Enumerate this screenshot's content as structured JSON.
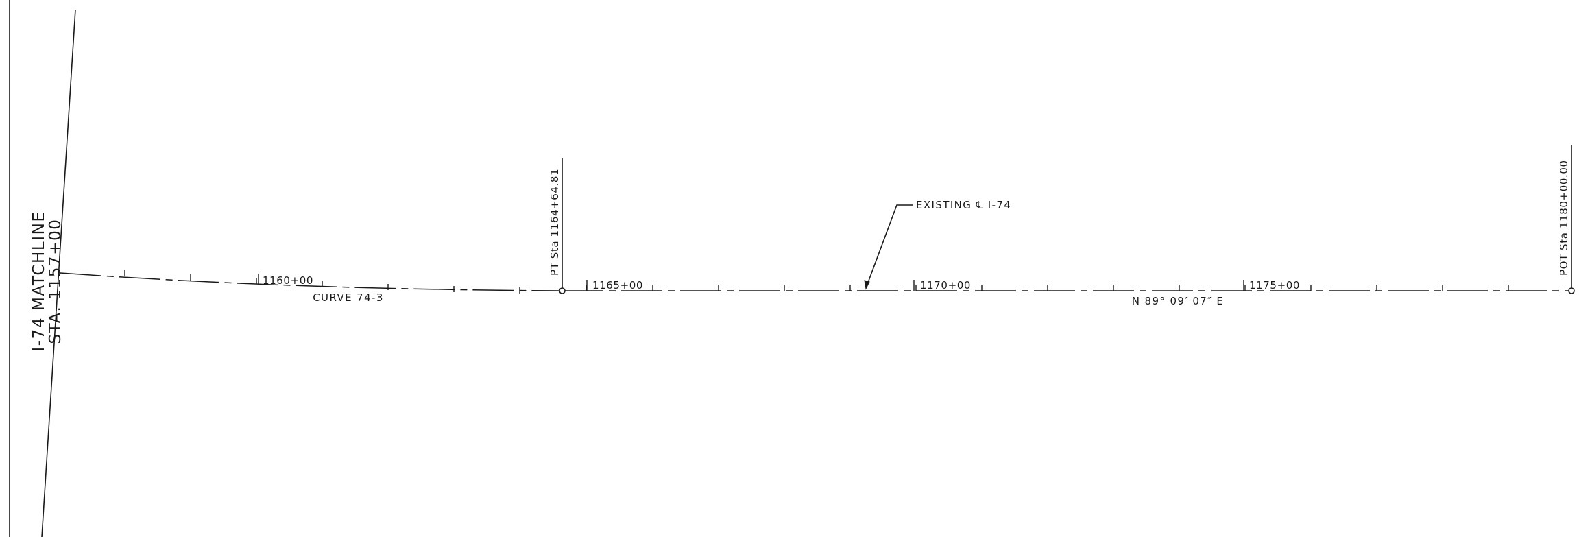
{
  "matchline": {
    "line1": "I-74 MATCHLINE",
    "line2": "STA. 1157+00"
  },
  "alignment": {
    "curve_label": "CURVE 74-3",
    "tangent_bearing": "N 89° 09′ 07″ E",
    "existing_label": "EXISTING ℄ I-74",
    "stations": [
      {
        "label": "1160+00"
      },
      {
        "label": "1165+00"
      },
      {
        "label": "1170+00"
      },
      {
        "label": "1175+00"
      }
    ],
    "points": [
      {
        "label": "PT Sta 1164+64.81"
      },
      {
        "label": "POT Sta 1180+00.00"
      }
    ]
  }
}
